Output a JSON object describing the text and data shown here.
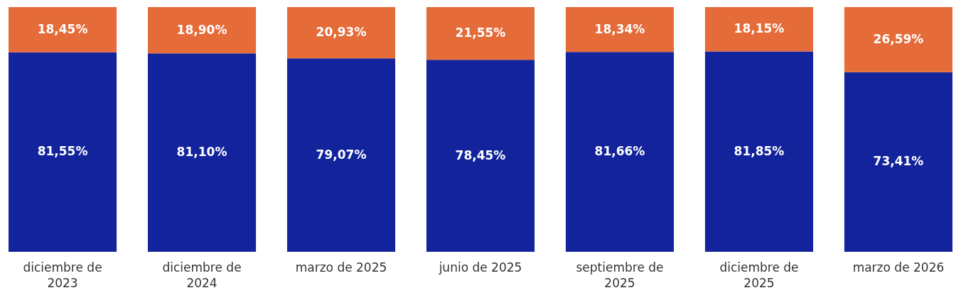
{
  "chart_data": {
    "type": "bar",
    "stacked": true,
    "categories": [
      "diciembre de 2023",
      "diciembre de 2024",
      "marzo de 2025",
      "junio de 2025",
      "septiembre de 2025",
      "diciembre de 2025",
      "marzo de 2026"
    ],
    "series": [
      {
        "color": "#12239b",
        "values": [
          81.55,
          81.1,
          79.07,
          78.45,
          81.66,
          81.85,
          73.41
        ],
        "value_labels": [
          "81,55%",
          "81,10%",
          "79,07%",
          "78,45%",
          "81,66%",
          "81,85%",
          "73,41%"
        ]
      },
      {
        "color": "#e56b39",
        "values": [
          18.45,
          18.9,
          20.93,
          21.55,
          18.34,
          18.15,
          26.59
        ],
        "value_labels": [
          "18,45%",
          "18,90%",
          "20,93%",
          "21,55%",
          "18,34%",
          "18,15%",
          "26,59%"
        ]
      }
    ]
  }
}
